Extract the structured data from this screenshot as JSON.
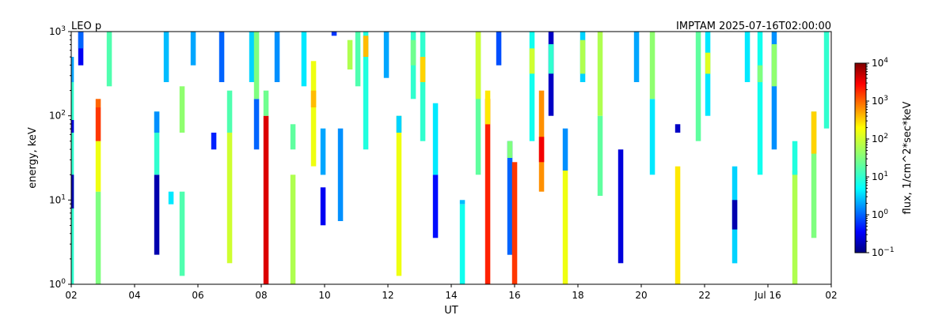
{
  "chart_data": {
    "type": "heatmap",
    "title_left": "LEO p",
    "title_right": "IMPTAM 2025-07-16T02:00:00",
    "xlabel": "UT",
    "ylabel": "energy, keV",
    "x_tick_labels": [
      "02",
      "04",
      "06",
      "08",
      "10",
      "12",
      "14",
      "16",
      "18",
      "20",
      "22",
      "Jul 16",
      "02"
    ],
    "x_range_hours_ut": [
      2,
      26
    ],
    "y_scale": "log",
    "ylim": [
      1,
      1000
    ],
    "y_ticks": [
      {
        "base": "10",
        "exp": "0"
      },
      {
        "base": "10",
        "exp": "1"
      },
      {
        "base": "10",
        "exp": "2"
      },
      {
        "base": "10",
        "exp": "3"
      }
    ],
    "colorbar": {
      "label": "flux, 1/cm^2*sec*keV",
      "scale": "log",
      "range": [
        0.1,
        10000
      ],
      "ticks": [
        {
          "base": "10",
          "exp": "−1"
        },
        {
          "base": "10",
          "exp": "0"
        },
        {
          "base": "10",
          "exp": "1"
        },
        {
          "base": "10",
          "exp": "2"
        },
        {
          "base": "10",
          "exp": "3"
        },
        {
          "base": "10",
          "exp": "4"
        }
      ],
      "colormap": "jet"
    },
    "grid": false,
    "cell_columns_note_units": "x in hours UT (26 = 02 next day), y as log10(energy keV), value as log10(flux)",
    "columns": [
      {
        "x": 2.0,
        "cells": [
          [
            0.0,
            2.4,
            1.0
          ],
          [
            2.4,
            2.7,
            0.3
          ]
        ]
      },
      {
        "x": 2.0,
        "cells": [
          [
            0.9,
            1.3,
            -0.8
          ],
          [
            1.8,
            1.95,
            -0.6
          ]
        ]
      },
      {
        "x": 2.3,
        "cells": [
          [
            2.6,
            3.0,
            -0.5
          ],
          [
            2.8,
            3.0,
            0.0
          ]
        ]
      },
      {
        "x": 2.85,
        "cells": [
          [
            0.0,
            1.1,
            1.5
          ],
          [
            1.1,
            1.7,
            2.2
          ],
          [
            1.7,
            2.1,
            3.2
          ],
          [
            2.1,
            2.2,
            3.0
          ]
        ]
      },
      {
        "x": 3.2,
        "cells": [
          [
            2.35,
            3.0,
            1.2
          ]
        ]
      },
      {
        "x": 4.7,
        "cells": [
          [
            0.35,
            1.3,
            -0.8
          ],
          [
            1.3,
            2.05,
            1.0
          ],
          [
            1.8,
            2.05,
            0.2
          ]
        ]
      },
      {
        "x": 5.0,
        "cells": [
          [
            2.4,
            3.0,
            0.4
          ]
        ]
      },
      {
        "x": 5.15,
        "cells": [
          [
            0.95,
            1.1,
            0.6
          ]
        ]
      },
      {
        "x": 5.5,
        "cells": [
          [
            0.1,
            1.1,
            1.2
          ],
          [
            1.8,
            2.35,
            1.6
          ]
        ]
      },
      {
        "x": 5.85,
        "cells": [
          [
            2.6,
            3.0,
            0.3
          ]
        ]
      },
      {
        "x": 6.5,
        "cells": [
          [
            1.6,
            1.8,
            -0.3
          ]
        ]
      },
      {
        "x": 6.75,
        "cells": [
          [
            2.4,
            3.0,
            0.0
          ]
        ]
      },
      {
        "x": 7.0,
        "cells": [
          [
            0.25,
            1.8,
            2.0
          ],
          [
            1.8,
            2.3,
            1.2
          ]
        ]
      },
      {
        "x": 7.7,
        "cells": [
          [
            2.4,
            3.0,
            0.5
          ]
        ]
      },
      {
        "x": 7.85,
        "cells": [
          [
            1.6,
            2.2,
            0.0
          ],
          [
            2.2,
            3.0,
            1.5
          ]
        ]
      },
      {
        "x": 8.15,
        "cells": [
          [
            0.0,
            2.0,
            3.6
          ],
          [
            2.0,
            2.3,
            1.4
          ]
        ]
      },
      {
        "x": 8.5,
        "cells": [
          [
            2.4,
            3.0,
            0.2
          ]
        ]
      },
      {
        "x": 9.0,
        "cells": [
          [
            0.0,
            1.3,
            1.8
          ],
          [
            1.6,
            1.9,
            1.3
          ]
        ]
      },
      {
        "x": 9.35,
        "cells": [
          [
            2.35,
            3.0,
            0.6
          ]
        ]
      },
      {
        "x": 9.65,
        "cells": [
          [
            1.4,
            2.65,
            2.2
          ],
          [
            2.1,
            2.3,
            2.6
          ]
        ]
      },
      {
        "x": 9.95,
        "cells": [
          [
            0.7,
            1.15,
            -0.5
          ],
          [
            1.3,
            1.85,
            0.3
          ]
        ]
      },
      {
        "x": 10.3,
        "cells": [
          [
            2.95,
            3.0,
            -0.2
          ]
        ]
      },
      {
        "x": 10.5,
        "cells": [
          [
            0.75,
            1.85,
            0.2
          ]
        ]
      },
      {
        "x": 10.8,
        "cells": [
          [
            2.55,
            2.9,
            1.8
          ]
        ]
      },
      {
        "x": 11.05,
        "cells": [
          [
            2.35,
            3.0,
            1.2
          ]
        ]
      },
      {
        "x": 11.3,
        "cells": [
          [
            1.6,
            3.0,
            0.9
          ],
          [
            2.7,
            2.95,
            2.6
          ]
        ]
      },
      {
        "x": 11.95,
        "cells": [
          [
            2.45,
            3.0,
            0.3
          ]
        ]
      },
      {
        "x": 12.35,
        "cells": [
          [
            0.1,
            2.0,
            2.2
          ],
          [
            1.8,
            2.0,
            0.5
          ]
        ]
      },
      {
        "x": 12.8,
        "cells": [
          [
            2.2,
            3.0,
            1.0
          ],
          [
            2.6,
            2.9,
            1.4
          ]
        ]
      },
      {
        "x": 13.1,
        "cells": [
          [
            1.7,
            3.0,
            1.0
          ],
          [
            2.4,
            2.7,
            2.5
          ]
        ]
      },
      {
        "x": 13.5,
        "cells": [
          [
            0.55,
            1.3,
            -0.4
          ],
          [
            1.3,
            2.15,
            0.6
          ]
        ]
      },
      {
        "x": 14.35,
        "cells": [
          [
            0.0,
            0.95,
            0.8
          ],
          [
            0.95,
            1.0,
            0.4
          ]
        ]
      },
      {
        "x": 14.85,
        "cells": [
          [
            1.3,
            3.0,
            1.3
          ],
          [
            2.2,
            3.0,
            2.0
          ]
        ]
      },
      {
        "x": 15.15,
        "cells": [
          [
            0.0,
            2.2,
            3.3
          ],
          [
            1.9,
            2.3,
            2.4
          ]
        ]
      },
      {
        "x": 15.5,
        "cells": [
          [
            2.6,
            3.0,
            -0.1
          ]
        ]
      },
      {
        "x": 15.85,
        "cells": [
          [
            0.35,
            1.7,
            0.0
          ],
          [
            1.5,
            1.7,
            1.5
          ]
        ]
      },
      {
        "x": 16.0,
        "cells": [
          [
            0.0,
            1.45,
            3.2
          ]
        ]
      },
      {
        "x": 16.55,
        "cells": [
          [
            1.7,
            3.0,
            0.8
          ],
          [
            2.5,
            2.8,
            2.0
          ]
        ]
      },
      {
        "x": 16.85,
        "cells": [
          [
            1.1,
            2.3,
            2.8
          ],
          [
            1.45,
            1.75,
            3.5
          ]
        ]
      },
      {
        "x": 17.15,
        "cells": [
          [
            2.0,
            3.0,
            -0.7
          ],
          [
            2.5,
            2.85,
            1.0
          ]
        ]
      },
      {
        "x": 17.6,
        "cells": [
          [
            0.0,
            1.35,
            2.2
          ],
          [
            1.35,
            1.85,
            0.2
          ]
        ]
      },
      {
        "x": 18.15,
        "cells": [
          [
            2.4,
            3.0,
            0.5
          ],
          [
            2.5,
            2.9,
            1.8
          ]
        ]
      },
      {
        "x": 18.7,
        "cells": [
          [
            1.05,
            2.0,
            1.3
          ],
          [
            2.0,
            3.0,
            1.8
          ]
        ]
      },
      {
        "x": 19.35,
        "cells": [
          [
            0.25,
            1.6,
            -0.6
          ]
        ]
      },
      {
        "x": 19.85,
        "cells": [
          [
            2.4,
            3.0,
            0.3
          ]
        ]
      },
      {
        "x": 20.35,
        "cells": [
          [
            1.3,
            2.2,
            0.6
          ],
          [
            2.2,
            3.0,
            1.6
          ]
        ]
      },
      {
        "x": 21.15,
        "cells": [
          [
            0.0,
            1.4,
            2.4
          ],
          [
            1.8,
            1.9,
            -0.7
          ]
        ]
      },
      {
        "x": 21.8,
        "cells": [
          [
            1.7,
            3.0,
            1.3
          ]
        ]
      },
      {
        "x": 22.1,
        "cells": [
          [
            2.0,
            3.0,
            0.6
          ],
          [
            2.5,
            2.75,
            2.1
          ]
        ]
      },
      {
        "x": 22.95,
        "cells": [
          [
            0.25,
            1.4,
            0.5
          ],
          [
            0.65,
            1.0,
            -0.8
          ]
        ]
      },
      {
        "x": 23.35,
        "cells": [
          [
            2.4,
            3.0,
            0.6
          ]
        ]
      },
      {
        "x": 23.75,
        "cells": [
          [
            1.3,
            3.0,
            0.8
          ],
          [
            2.4,
            2.6,
            1.5
          ]
        ]
      },
      {
        "x": 24.2,
        "cells": [
          [
            1.6,
            3.0,
            0.2
          ],
          [
            2.35,
            2.85,
            1.6
          ]
        ]
      },
      {
        "x": 24.85,
        "cells": [
          [
            0.0,
            1.35,
            1.8
          ],
          [
            1.3,
            1.7,
            0.9
          ]
        ]
      },
      {
        "x": 25.45,
        "cells": [
          [
            0.55,
            2.05,
            1.5
          ],
          [
            1.55,
            2.05,
            2.5
          ]
        ]
      },
      {
        "x": 25.85,
        "cells": [
          [
            1.85,
            3.0,
            1.0
          ]
        ]
      }
    ]
  }
}
